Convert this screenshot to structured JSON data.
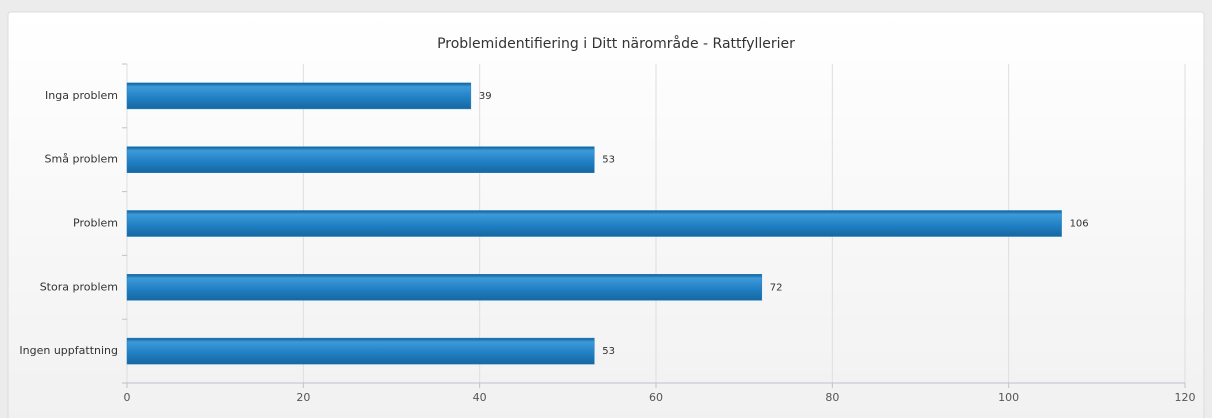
{
  "chart_data": {
    "type": "bar",
    "orientation": "horizontal",
    "title": "Problemidentifiering i Ditt närområde - Rattfyllerier",
    "categories": [
      "Inga problem",
      "Små problem",
      "Problem",
      "Stora problem",
      "Ingen uppfattning"
    ],
    "values": [
      39,
      53,
      106,
      72,
      53
    ],
    "color": "#1f7ec2",
    "xlim": [
      0,
      120
    ],
    "xticks": [
      0,
      20,
      40,
      60,
      80,
      100,
      120
    ],
    "grid": true
  }
}
